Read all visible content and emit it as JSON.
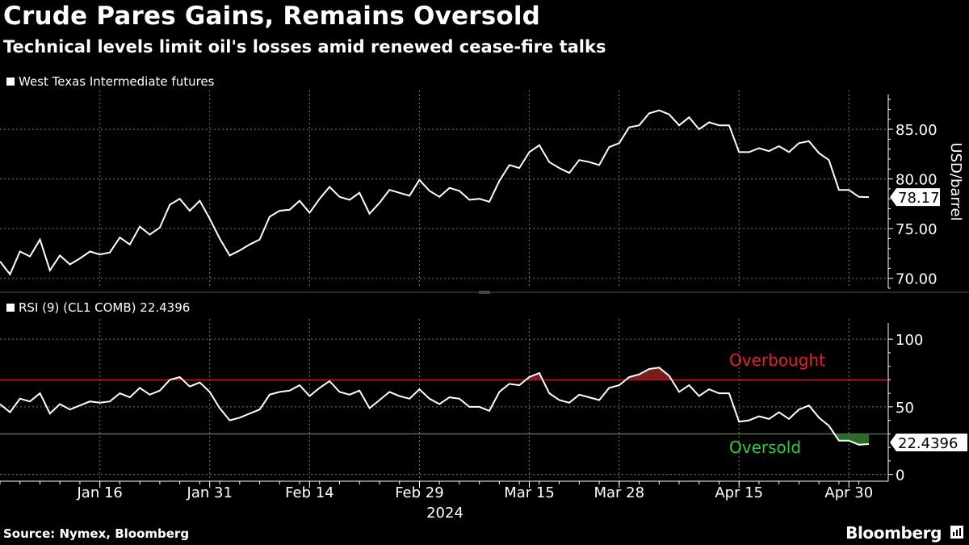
{
  "title": "Crude Pares Gains, Remains Oversold",
  "subtitle": "Technical levels limit oil's losses amid renewed cease-fire talks",
  "source": "Source: Nymex, Bloomberg",
  "brand": "Bloomberg",
  "chart_data": [
    {
      "type": "line",
      "legend": "West Texas Intermediate futures",
      "ylabel": "USD/barrel",
      "ylim": [
        69,
        88.5
      ],
      "yticks": [
        70,
        75,
        80,
        85
      ],
      "ytick_labels": [
        "70.00",
        "75.00",
        "80.00",
        "85.00"
      ],
      "last_value_label": "78.17",
      "line_color": "#ffffff",
      "grid": true,
      "values": [
        71.7,
        70.4,
        72.7,
        72.2,
        73.9,
        70.8,
        72.3,
        71.4,
        72.0,
        72.7,
        72.4,
        72.6,
        74.1,
        73.4,
        75.2,
        74.4,
        75.1,
        77.4,
        78.0,
        76.8,
        77.8,
        76.0,
        74.0,
        72.3,
        72.8,
        73.4,
        73.9,
        76.2,
        76.8,
        76.9,
        77.8,
        76.6,
        78.0,
        79.2,
        78.2,
        77.9,
        78.6,
        76.5,
        77.6,
        78.9,
        78.6,
        78.3,
        79.9,
        78.8,
        78.2,
        79.1,
        78.8,
        77.9,
        78.0,
        77.7,
        79.8,
        81.4,
        81.1,
        82.7,
        83.4,
        81.7,
        81.1,
        80.6,
        81.9,
        81.7,
        81.4,
        83.2,
        83.6,
        85.2,
        85.4,
        86.6,
        86.9,
        86.5,
        85.4,
        86.2,
        85.0,
        85.7,
        85.4,
        85.4,
        82.7,
        82.7,
        83.1,
        82.8,
        83.3,
        82.7,
        83.6,
        83.8,
        82.6,
        81.9,
        78.9,
        78.9,
        78.2,
        78.17
      ]
    },
    {
      "type": "line",
      "legend": "RSI (9) (CL1 COMB) 22.4396",
      "ylim": [
        -5,
        112
      ],
      "yticks": [
        0,
        50,
        100
      ],
      "ytick_labels": [
        "0",
        "50",
        "100"
      ],
      "last_value_label": "22.4396",
      "line_color": "#ffffff",
      "overbought_level": 70,
      "oversold_level": 30,
      "overbought_label": "Overbought",
      "oversold_label": "Oversold",
      "overbought_color": "#e8202a",
      "oversold_color": "#2ecc40",
      "overbought_fill": "#7a1d1d",
      "oversold_fill": "#2a6b2a",
      "grid": true,
      "values": [
        52,
        46,
        56,
        54,
        60,
        45,
        52,
        48,
        51,
        54,
        53,
        54,
        60,
        57,
        64,
        59,
        62,
        70,
        72,
        65,
        68,
        61,
        49,
        40,
        42,
        45,
        48,
        59,
        61,
        62,
        66,
        58,
        64,
        69,
        61,
        59,
        62,
        49,
        55,
        61,
        58,
        56,
        63,
        56,
        52,
        57,
        56,
        50,
        50,
        47,
        61,
        67,
        66,
        72,
        75,
        60,
        55,
        53,
        59,
        57,
        55,
        64,
        66,
        72,
        74,
        78,
        79,
        73,
        61,
        66,
        58,
        63,
        60,
        60,
        39,
        40,
        43,
        41,
        46,
        41,
        48,
        51,
        42,
        36,
        25,
        25,
        22,
        22.4396
      ]
    }
  ],
  "x_axis": {
    "tick_labels": [
      "Jan 16",
      "Jan 31",
      "Feb 14",
      "Feb 29",
      "Mar 15",
      "Mar 28",
      "Apr 15",
      "Apr 30"
    ],
    "tick_index": [
      10,
      21,
      31,
      42,
      53,
      62,
      74,
      85
    ],
    "year_label": "2024"
  }
}
